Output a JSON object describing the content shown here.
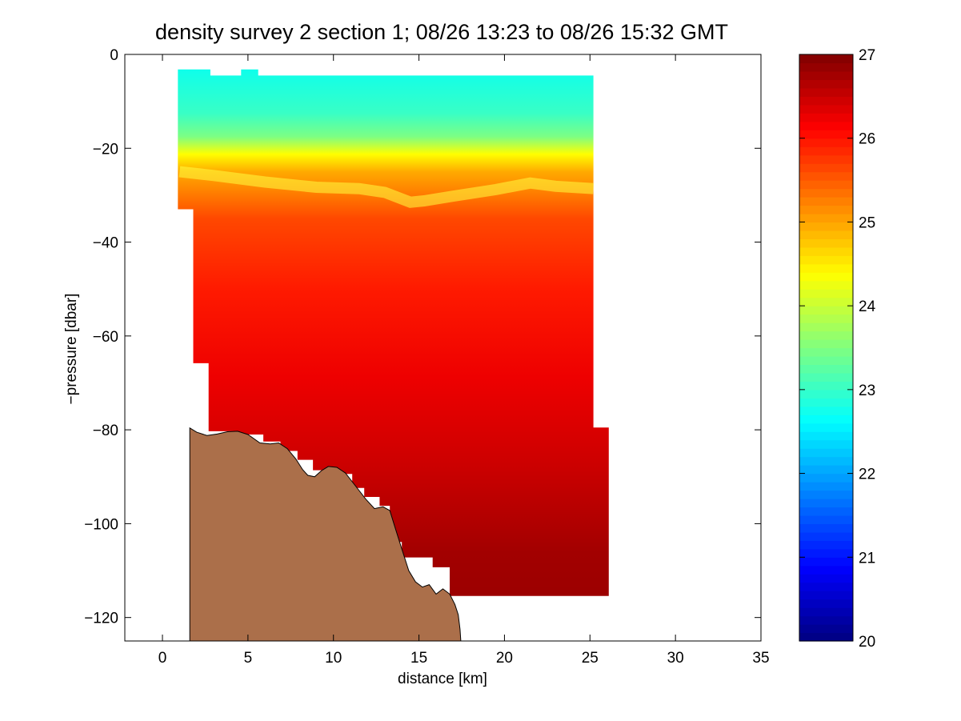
{
  "chart_data": {
    "type": "heatmap",
    "title": "density survey 2 section 1; 08/26 13:23 to 08/26 15:32 GMT",
    "xlabel": "distance [km]",
    "ylabel": "−pressure [dbar]",
    "xlim": [
      -2.2,
      35
    ],
    "ylim": [
      -125,
      0
    ],
    "xticks": [
      0,
      5,
      10,
      15,
      20,
      25,
      30,
      35
    ],
    "xtick_labels": [
      "0",
      "5",
      "10",
      "15",
      "20",
      "25",
      "30",
      "35"
    ],
    "yticks": [
      0,
      -20,
      -40,
      -60,
      -80,
      -100,
      -120
    ],
    "ytick_labels": [
      "0",
      "−20",
      "−40",
      "−60",
      "−80",
      "−100",
      "−120"
    ],
    "colorbar": {
      "colormap": "jet",
      "range": [
        20,
        27
      ],
      "ticks": [
        20,
        21,
        22,
        23,
        24,
        25,
        26,
        27
      ],
      "tick_labels": [
        "20",
        "21",
        "22",
        "23",
        "24",
        "25",
        "26",
        "27"
      ]
    },
    "colorbar_levels": 70,
    "bottom_color": "#ab6f4a",
    "section_outline": [
      [
        0.9,
        -3.2
      ],
      [
        2.8,
        -3.2
      ],
      [
        2.8,
        -4.5
      ],
      [
        4.6,
        -4.5
      ],
      [
        4.6,
        -3.2
      ],
      [
        5.6,
        -3.2
      ],
      [
        5.6,
        -4.5
      ],
      [
        25.2,
        -4.5
      ],
      [
        25.2,
        -79.5
      ],
      [
        26.1,
        -79.5
      ],
      [
        26.1,
        -115.4
      ],
      [
        16.8,
        -115.4
      ],
      [
        16.8,
        -109.3
      ],
      [
        15.8,
        -109.3
      ],
      [
        15.8,
        -107.2
      ],
      [
        14.0,
        -107.2
      ],
      [
        14.0,
        -103.9
      ],
      [
        13.3,
        -103.9
      ],
      [
        13.3,
        -96.2
      ],
      [
        12.7,
        -96.2
      ],
      [
        12.7,
        -94.3
      ],
      [
        11.8,
        -94.3
      ],
      [
        11.8,
        -92.4
      ],
      [
        11.1,
        -92.4
      ],
      [
        11.1,
        -89.4
      ],
      [
        10.3,
        -89.4
      ],
      [
        10.3,
        -88.6
      ],
      [
        8.8,
        -88.6
      ],
      [
        8.8,
        -86.4
      ],
      [
        7.9,
        -86.4
      ],
      [
        7.9,
        -84.5
      ],
      [
        6.9,
        -84.5
      ],
      [
        6.9,
        -82.5
      ],
      [
        5.9,
        -82.5
      ],
      [
        5.9,
        -81.0
      ],
      [
        4.2,
        -81.0
      ],
      [
        4.2,
        -80.3
      ],
      [
        2.7,
        -80.3
      ],
      [
        2.7,
        -65.8
      ],
      [
        1.8,
        -65.8
      ],
      [
        1.8,
        -33.0
      ],
      [
        0.9,
        -33.0
      ]
    ],
    "pycnocline_depth": [
      [
        1.0,
        -25.0
      ],
      [
        3.0,
        -25.8
      ],
      [
        6.0,
        -27.2
      ],
      [
        9.0,
        -28.3
      ],
      [
        11.5,
        -28.6
      ],
      [
        13.0,
        -29.4
      ],
      [
        14.5,
        -31.5
      ],
      [
        15.3,
        -31.2
      ],
      [
        17.0,
        -30.2
      ],
      [
        19.5,
        -28.8
      ],
      [
        21.5,
        -27.4
      ],
      [
        23.0,
        -28.1
      ],
      [
        25.2,
        -28.6
      ]
    ],
    "bathymetry": [
      [
        1.6,
        -79.6
      ],
      [
        2.0,
        -80.5
      ],
      [
        2.6,
        -81.2
      ],
      [
        3.2,
        -80.9
      ],
      [
        3.8,
        -80.4
      ],
      [
        4.4,
        -80.3
      ],
      [
        5.0,
        -81.0
      ],
      [
        5.7,
        -82.8
      ],
      [
        6.3,
        -83.0
      ],
      [
        6.8,
        -82.8
      ],
      [
        7.3,
        -84.0
      ],
      [
        7.8,
        -86.2
      ],
      [
        8.2,
        -88.5
      ],
      [
        8.5,
        -89.7
      ],
      [
        8.9,
        -90.0
      ],
      [
        9.3,
        -88.7
      ],
      [
        9.7,
        -87.8
      ],
      [
        10.2,
        -88.0
      ],
      [
        10.7,
        -89.2
      ],
      [
        11.3,
        -92.0
      ],
      [
        11.9,
        -94.8
      ],
      [
        12.4,
        -96.8
      ],
      [
        12.9,
        -96.4
      ],
      [
        13.3,
        -97.2
      ],
      [
        13.6,
        -100.8
      ],
      [
        14.0,
        -105.4
      ],
      [
        14.4,
        -110.0
      ],
      [
        14.8,
        -112.4
      ],
      [
        15.2,
        -113.5
      ],
      [
        15.6,
        -113.0
      ],
      [
        16.0,
        -115.0
      ],
      [
        16.4,
        -113.9
      ],
      [
        16.8,
        -115.0
      ],
      [
        17.1,
        -117.2
      ],
      [
        17.3,
        -119.4
      ],
      [
        17.4,
        -122.5
      ],
      [
        17.45,
        -125.0
      ],
      [
        1.6,
        -125.0
      ]
    ]
  }
}
